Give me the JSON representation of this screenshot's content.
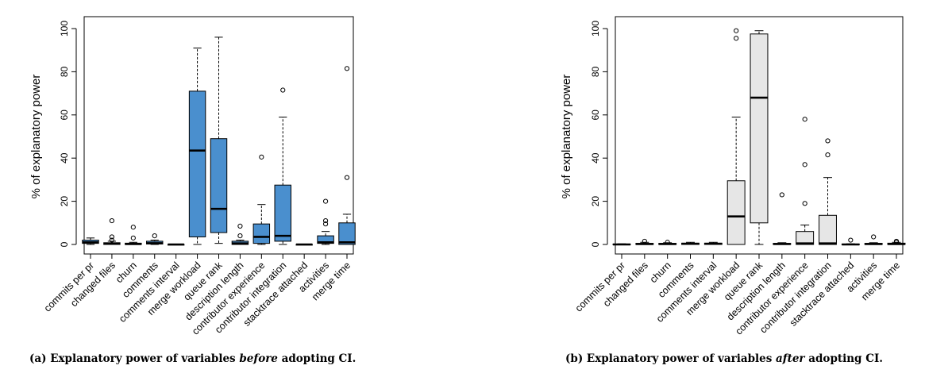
{
  "captions": {
    "a": {
      "pre": "(a) Explanatory power of variables ",
      "em": "before",
      "post": " adopting CI."
    },
    "b": {
      "pre": "(b) Explanatory power of variables ",
      "em": "after",
      "post": " adopting CI."
    }
  },
  "colors": {
    "before_fill": "#4a8fce",
    "after_fill": "#e6e6e6",
    "stroke": "#000000"
  },
  "chart_data": [
    {
      "type": "boxplot",
      "id": "before",
      "ylabel": "% of explanatory power",
      "ylim": [
        0,
        100
      ],
      "yticks": [
        0,
        20,
        40,
        60,
        80,
        100
      ],
      "grid": false,
      "categories": [
        "commits per pr",
        "changed files",
        "churn",
        "comments",
        "comments interval",
        "merge workload",
        "queue rank",
        "description length",
        "contributor experience",
        "contributor integration",
        "stacktrace attached",
        "activities",
        "merge time"
      ],
      "boxes": [
        {
          "lo": 0,
          "q1": 0.5,
          "med": 1,
          "q3": 2,
          "hi": 3,
          "out": []
        },
        {
          "lo": 0,
          "q1": 0,
          "med": 0.3,
          "q3": 0.8,
          "hi": 1.5,
          "out": [
            11,
            3.5,
            2
          ]
        },
        {
          "lo": 0,
          "q1": 0,
          "med": 0.2,
          "q3": 0.6,
          "hi": 1,
          "out": [
            8,
            3
          ]
        },
        {
          "lo": 0,
          "q1": 0.2,
          "med": 0.6,
          "q3": 1.5,
          "hi": 2,
          "out": [
            4
          ]
        },
        {
          "lo": 0,
          "q1": 0,
          "med": 0,
          "q3": 0,
          "hi": 0,
          "out": []
        },
        {
          "lo": 0,
          "q1": 3.5,
          "med": 43.5,
          "q3": 71,
          "hi": 91,
          "out": []
        },
        {
          "lo": 0.5,
          "q1": 5.5,
          "med": 16.5,
          "q3": 49,
          "hi": 96,
          "out": []
        },
        {
          "lo": 0,
          "q1": 0,
          "med": 0.5,
          "q3": 1.5,
          "hi": 2,
          "out": [
            8.5,
            4
          ]
        },
        {
          "lo": 0,
          "q1": 0.5,
          "med": 3.5,
          "q3": 9.5,
          "hi": 18.5,
          "out": [
            40.5
          ]
        },
        {
          "lo": 0,
          "q1": 1.5,
          "med": 4,
          "q3": 27.5,
          "hi": 59,
          "out": [
            71.5
          ]
        },
        {
          "lo": 0,
          "q1": 0,
          "med": 0,
          "q3": 0,
          "hi": 0,
          "out": []
        },
        {
          "lo": 0,
          "q1": 0.5,
          "med": 1,
          "q3": 4,
          "hi": 6,
          "out": [
            20,
            11,
            9.5
          ]
        },
        {
          "lo": 0,
          "q1": 0,
          "med": 1,
          "q3": 10,
          "hi": 14,
          "out": [
            81.5,
            31
          ]
        }
      ]
    },
    {
      "type": "boxplot",
      "id": "after",
      "ylabel": "% of explanatory power",
      "ylim": [
        0,
        100
      ],
      "yticks": [
        0,
        20,
        40,
        60,
        80,
        100
      ],
      "grid": false,
      "categories": [
        "commits per pr",
        "changed files",
        "churn",
        "comments",
        "comments interval",
        "merge workload",
        "queue rank",
        "description length",
        "contributor experience",
        "contributor integration",
        "stacktrace attached",
        "activities",
        "merge time"
      ],
      "boxes": [
        {
          "lo": 0,
          "q1": 0,
          "med": 0,
          "q3": 0.2,
          "hi": 0.3,
          "out": []
        },
        {
          "lo": 0,
          "q1": 0,
          "med": 0.2,
          "q3": 0.5,
          "hi": 1,
          "out": [
            1.5
          ]
        },
        {
          "lo": 0,
          "q1": 0,
          "med": 0.2,
          "q3": 0.5,
          "hi": 0.8,
          "out": [
            1
          ]
        },
        {
          "lo": 0,
          "q1": 0,
          "med": 0.3,
          "q3": 0.6,
          "hi": 1,
          "out": []
        },
        {
          "lo": 0,
          "q1": 0,
          "med": 0.3,
          "q3": 0.6,
          "hi": 1,
          "out": []
        },
        {
          "lo": 0,
          "q1": 0,
          "med": 13,
          "q3": 29.5,
          "hi": 59,
          "out": [
            99,
            95.5
          ]
        },
        {
          "lo": 0,
          "q1": 10,
          "med": 68,
          "q3": 97.5,
          "hi": 99,
          "out": []
        },
        {
          "lo": 0,
          "q1": 0,
          "med": 0.2,
          "q3": 0.5,
          "hi": 0.8,
          "out": [
            23
          ]
        },
        {
          "lo": 0,
          "q1": 0,
          "med": 0.5,
          "q3": 6,
          "hi": 9,
          "out": [
            58,
            37,
            19
          ]
        },
        {
          "lo": 0,
          "q1": 0,
          "med": 0.5,
          "q3": 13.5,
          "hi": 31,
          "out": [
            48,
            41.5
          ]
        },
        {
          "lo": 0,
          "q1": 0,
          "med": 0,
          "q3": 0.2,
          "hi": 0.3,
          "out": [
            2
          ]
        },
        {
          "lo": 0,
          "q1": 0,
          "med": 0.2,
          "q3": 0.5,
          "hi": 0.8,
          "out": [
            3.5
          ]
        },
        {
          "lo": 0,
          "q1": 0,
          "med": 0.2,
          "q3": 0.6,
          "hi": 1,
          "out": [
            1.5,
            1
          ]
        }
      ]
    }
  ]
}
